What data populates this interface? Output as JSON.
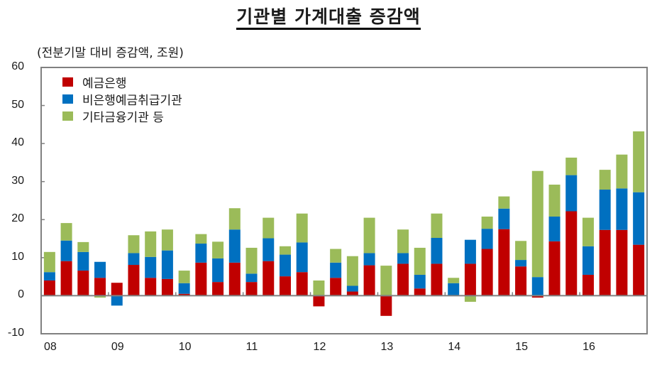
{
  "title": "기관별 가계대출 증감액",
  "subtitle": "(전분기말 대비 증감액, 조원)",
  "colors": {
    "deposit_banks": "#C00000",
    "non_bank": "#0070C0",
    "other": "#9BBB59",
    "axis": "#808080"
  },
  "legend": [
    {
      "label": "예금은행",
      "color": "#C00000"
    },
    {
      "label": "비은행예금취급기관",
      "color": "#0070C0"
    },
    {
      "label": "기타금융기관 등",
      "color": "#9BBB59"
    }
  ],
  "y_ticks": [
    "60",
    "50",
    "40",
    "30",
    "20",
    "10",
    "0",
    "-10"
  ],
  "x_ticks": [
    "08",
    "09",
    "10",
    "11",
    "12",
    "13",
    "14",
    "15",
    "16"
  ],
  "chart_data": {
    "type": "bar",
    "stacked": true,
    "title": "기관별 가계대출 증감액",
    "subtitle": "(전분기말 대비 증감액, 조원)",
    "xlabel": "",
    "ylabel": "조원",
    "ylim": [
      -10,
      60
    ],
    "yticks": [
      -10,
      0,
      10,
      20,
      30,
      40,
      50,
      60
    ],
    "grid": false,
    "legend_position": "upper-left inside",
    "categories": [
      "08Q1",
      "08Q2",
      "08Q3",
      "08Q4",
      "09Q1",
      "09Q2",
      "09Q3",
      "09Q4",
      "10Q1",
      "10Q2",
      "10Q3",
      "10Q4",
      "11Q1",
      "11Q2",
      "11Q3",
      "11Q4",
      "12Q1",
      "12Q2",
      "12Q3",
      "12Q4",
      "13Q1",
      "13Q2",
      "13Q3",
      "13Q4",
      "14Q1",
      "14Q2",
      "14Q3",
      "14Q4",
      "15Q1",
      "15Q2",
      "15Q3",
      "15Q4",
      "16Q1",
      "16Q2",
      "16Q3",
      "16Q4"
    ],
    "x_tick_labels": [
      "08",
      "09",
      "10",
      "11",
      "12",
      "13",
      "14",
      "15",
      "16"
    ],
    "series": [
      {
        "name": "예금은행",
        "color": "#C00000",
        "values": [
          4.0,
          9.1,
          6.6,
          4.7,
          3.4,
          8.1,
          4.7,
          4.4,
          0.5,
          8.7,
          3.6,
          8.7,
          3.6,
          9.1,
          5.1,
          6.2,
          -2.8,
          4.7,
          1.1,
          8.0,
          -5.3,
          8.4,
          1.9,
          8.4,
          0.0,
          8.4,
          12.3,
          17.5,
          7.7,
          -0.5,
          14.3,
          22.2,
          5.5,
          17.3,
          17.3,
          13.4
        ]
      },
      {
        "name": "비은행예금취급기관",
        "color": "#0070C0",
        "values": [
          2.2,
          5.4,
          4.9,
          4.2,
          -2.6,
          3.1,
          5.5,
          7.5,
          2.8,
          5.0,
          6.2,
          8.7,
          2.2,
          6.0,
          5.7,
          7.8,
          0.0,
          4.0,
          1.5,
          3.2,
          0.0,
          2.8,
          3.6,
          6.8,
          3.3,
          6.3,
          5.3,
          5.4,
          1.7,
          4.9,
          6.5,
          9.5,
          7.5,
          10.6,
          10.9,
          13.8
        ]
      },
      {
        "name": "기타금융기관 등",
        "color": "#9BBB59",
        "values": [
          5.3,
          4.6,
          2.6,
          -0.5,
          0.0,
          4.7,
          6.7,
          5.5,
          3.3,
          2.5,
          4.4,
          5.6,
          6.8,
          5.4,
          2.2,
          7.6,
          4.0,
          3.6,
          7.8,
          9.3,
          7.9,
          6.2,
          7.1,
          6.4,
          1.4,
          -1.6,
          3.2,
          3.2,
          5.0,
          27.9,
          8.4,
          4.6,
          7.5,
          5.2,
          8.9,
          16.0
        ]
      }
    ]
  }
}
